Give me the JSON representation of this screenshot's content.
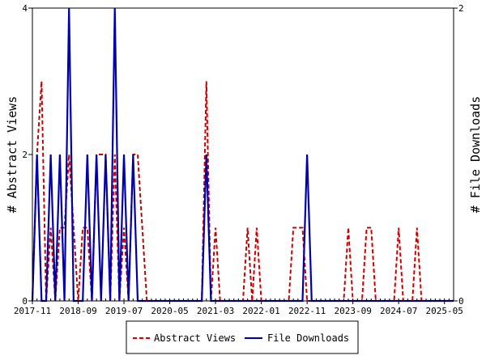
{
  "chart_data": {
    "type": "line",
    "title": "",
    "xlabel": "",
    "ylabel": "# Abstract Views",
    "y2label": "# File Downloads",
    "ylim": [
      0,
      4
    ],
    "y2lim": [
      0,
      2
    ],
    "yticks": [
      "0",
      "2",
      "4"
    ],
    "y2ticks": [
      "0",
      "2"
    ],
    "xlim": [
      "2017-11",
      "2025-07"
    ],
    "xticks": [
      "2017-11",
      "2018-09",
      "2019-07",
      "2020-05",
      "2021-03",
      "2022-01",
      "2022-11",
      "2023-09",
      "2024-07",
      "2025-05"
    ],
    "grid": false,
    "legend_position": "bottom",
    "series": [
      {
        "name": "Abstract Views",
        "axis": "left",
        "color": "#cc0000",
        "style": "dashed",
        "points": [
          [
            "2017-11",
            0
          ],
          [
            "2017-12",
            2
          ],
          [
            "2018-01",
            3
          ],
          [
            "2018-02",
            0
          ],
          [
            "2018-03",
            1
          ],
          [
            "2018-04",
            0
          ],
          [
            "2018-05",
            1
          ],
          [
            "2018-06",
            1
          ],
          [
            "2018-07",
            2
          ],
          [
            "2018-08",
            1
          ],
          [
            "2018-09",
            0
          ],
          [
            "2018-10",
            1
          ],
          [
            "2018-11",
            1
          ],
          [
            "2018-12",
            0
          ],
          [
            "2019-01",
            2
          ],
          [
            "2019-02",
            2
          ],
          [
            "2019-03",
            2
          ],
          [
            "2019-04",
            0
          ],
          [
            "2019-05",
            2
          ],
          [
            "2019-06",
            0
          ],
          [
            "2019-07",
            1
          ],
          [
            "2019-08",
            0
          ],
          [
            "2019-09",
            2
          ],
          [
            "2019-10",
            2
          ],
          [
            "2019-11",
            1
          ],
          [
            "2019-12",
            0
          ],
          [
            "2020-01",
            0
          ],
          [
            "2020-02",
            0
          ],
          [
            "2020-03",
            0
          ],
          [
            "2020-04",
            0
          ],
          [
            "2020-05",
            0
          ],
          [
            "2020-06",
            0
          ],
          [
            "2020-07",
            0
          ],
          [
            "2020-08",
            0
          ],
          [
            "2020-09",
            0
          ],
          [
            "2020-10",
            0
          ],
          [
            "2020-11",
            0
          ],
          [
            "2020-12",
            0
          ],
          [
            "2021-01",
            3
          ],
          [
            "2021-02",
            0
          ],
          [
            "2021-03",
            1
          ],
          [
            "2021-04",
            0
          ],
          [
            "2021-05",
            0
          ],
          [
            "2021-06",
            0
          ],
          [
            "2021-07",
            0
          ],
          [
            "2021-08",
            0
          ],
          [
            "2021-09",
            0
          ],
          [
            "2021-10",
            1
          ],
          [
            "2021-11",
            0
          ],
          [
            "2021-12",
            1
          ],
          [
            "2022-01",
            0
          ],
          [
            "2022-02",
            0
          ],
          [
            "2022-03",
            0
          ],
          [
            "2022-04",
            0
          ],
          [
            "2022-05",
            0
          ],
          [
            "2022-06",
            0
          ],
          [
            "2022-07",
            0
          ],
          [
            "2022-08",
            1
          ],
          [
            "2022-09",
            1
          ],
          [
            "2022-10",
            1
          ],
          [
            "2022-11",
            0
          ],
          [
            "2022-12",
            0
          ],
          [
            "2023-01",
            0
          ],
          [
            "2023-02",
            0
          ],
          [
            "2023-03",
            0
          ],
          [
            "2023-04",
            0
          ],
          [
            "2023-05",
            0
          ],
          [
            "2023-06",
            0
          ],
          [
            "2023-07",
            0
          ],
          [
            "2023-08",
            1
          ],
          [
            "2023-09",
            0
          ],
          [
            "2023-10",
            0
          ],
          [
            "2023-11",
            0
          ],
          [
            "2023-12",
            1
          ],
          [
            "2024-01",
            1
          ],
          [
            "2024-02",
            0
          ],
          [
            "2024-03",
            0
          ],
          [
            "2024-04",
            0
          ],
          [
            "2024-05",
            0
          ],
          [
            "2024-06",
            0
          ],
          [
            "2024-07",
            1
          ],
          [
            "2024-08",
            0
          ],
          [
            "2024-09",
            0
          ],
          [
            "2024-10",
            0
          ],
          [
            "2024-11",
            1
          ],
          [
            "2024-12",
            0
          ],
          [
            "2025-01",
            0
          ],
          [
            "2025-02",
            0
          ],
          [
            "2025-03",
            0
          ],
          [
            "2025-04",
            0
          ],
          [
            "2025-05",
            0
          ],
          [
            "2025-06",
            0
          ],
          [
            "2025-07",
            0
          ]
        ]
      },
      {
        "name": "File Downloads",
        "axis": "right",
        "color": "#0000aa",
        "style": "solid",
        "points": [
          [
            "2017-11",
            0
          ],
          [
            "2017-12",
            1
          ],
          [
            "2018-01",
            0
          ],
          [
            "2018-02",
            0
          ],
          [
            "2018-03",
            1
          ],
          [
            "2018-04",
            0
          ],
          [
            "2018-05",
            1
          ],
          [
            "2018-06",
            0
          ],
          [
            "2018-07",
            2
          ],
          [
            "2018-08",
            0
          ],
          [
            "2018-09",
            0
          ],
          [
            "2018-10",
            0
          ],
          [
            "2018-11",
            1
          ],
          [
            "2018-12",
            0
          ],
          [
            "2019-01",
            1
          ],
          [
            "2019-02",
            0
          ],
          [
            "2019-03",
            1
          ],
          [
            "2019-04",
            0
          ],
          [
            "2019-05",
            2
          ],
          [
            "2019-06",
            0
          ],
          [
            "2019-07",
            1
          ],
          [
            "2019-08",
            0
          ],
          [
            "2019-09",
            1
          ],
          [
            "2019-10",
            0
          ],
          [
            "2019-11",
            0
          ],
          [
            "2019-12",
            0
          ],
          [
            "2020-01",
            0
          ],
          [
            "2020-02",
            0
          ],
          [
            "2020-03",
            0
          ],
          [
            "2020-04",
            0
          ],
          [
            "2020-05",
            0
          ],
          [
            "2020-06",
            0
          ],
          [
            "2020-07",
            0
          ],
          [
            "2020-08",
            0
          ],
          [
            "2020-09",
            0
          ],
          [
            "2020-10",
            0
          ],
          [
            "2020-11",
            0
          ],
          [
            "2020-12",
            0
          ],
          [
            "2021-01",
            1
          ],
          [
            "2021-02",
            0
          ],
          [
            "2021-03",
            0
          ],
          [
            "2021-04",
            0
          ],
          [
            "2021-05",
            0
          ],
          [
            "2021-06",
            0
          ],
          [
            "2021-07",
            0
          ],
          [
            "2021-08",
            0
          ],
          [
            "2021-09",
            0
          ],
          [
            "2021-10",
            0
          ],
          [
            "2021-11",
            0
          ],
          [
            "2021-12",
            0
          ],
          [
            "2022-01",
            0
          ],
          [
            "2022-02",
            0
          ],
          [
            "2022-03",
            0
          ],
          [
            "2022-04",
            0
          ],
          [
            "2022-05",
            0
          ],
          [
            "2022-06",
            0
          ],
          [
            "2022-07",
            0
          ],
          [
            "2022-08",
            0
          ],
          [
            "2022-09",
            0
          ],
          [
            "2022-10",
            0
          ],
          [
            "2022-11",
            1
          ],
          [
            "2022-12",
            0
          ],
          [
            "2023-01",
            0
          ],
          [
            "2023-02",
            0
          ],
          [
            "2023-03",
            0
          ],
          [
            "2023-04",
            0
          ],
          [
            "2023-05",
            0
          ],
          [
            "2023-06",
            0
          ],
          [
            "2023-07",
            0
          ],
          [
            "2023-08",
            0
          ],
          [
            "2023-09",
            0
          ],
          [
            "2023-10",
            0
          ],
          [
            "2023-11",
            0
          ],
          [
            "2023-12",
            0
          ],
          [
            "2024-01",
            0
          ],
          [
            "2024-02",
            0
          ],
          [
            "2024-03",
            0
          ],
          [
            "2024-04",
            0
          ],
          [
            "2024-05",
            0
          ],
          [
            "2024-06",
            0
          ],
          [
            "2024-07",
            0
          ],
          [
            "2024-08",
            0
          ],
          [
            "2024-09",
            0
          ],
          [
            "2024-10",
            0
          ],
          [
            "2024-11",
            0
          ],
          [
            "2024-12",
            0
          ],
          [
            "2025-01",
            0
          ],
          [
            "2025-02",
            0
          ],
          [
            "2025-03",
            0
          ],
          [
            "2025-04",
            0
          ],
          [
            "2025-05",
            0
          ],
          [
            "2025-06",
            0
          ],
          [
            "2025-07",
            0
          ]
        ]
      }
    ]
  }
}
